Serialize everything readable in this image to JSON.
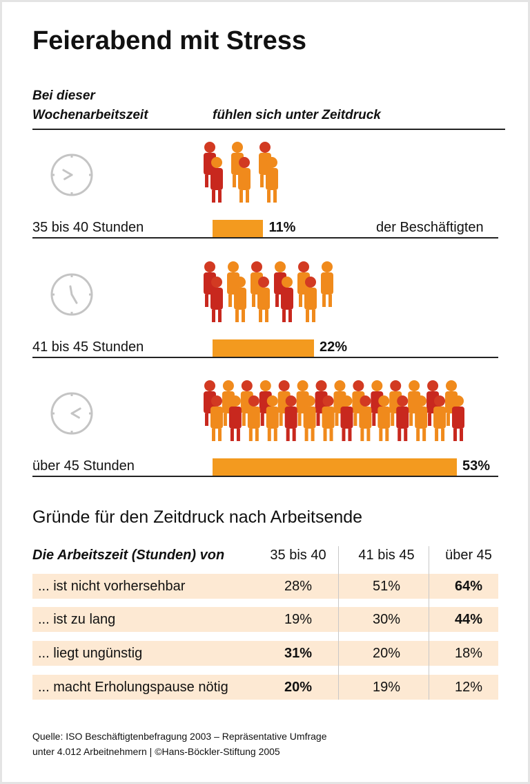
{
  "title": "Feierabend mit Stress",
  "header": {
    "left_line1": "Bei dieser",
    "left_line2": "Wochenarbeitszeit",
    "right": "fühlen sich unter Zeitdruck"
  },
  "chart_data": {
    "type": "bar",
    "categories": [
      "35 bis 40 Stunden",
      "41 bis 45 Stunden",
      "über 45 Stunden"
    ],
    "values": [
      11,
      22,
      53
    ],
    "value_labels": [
      "11%",
      "22%",
      "53%"
    ],
    "unit_note": "der Beschäftigten",
    "bar_color": "#f39a1f",
    "icons": [
      "clock-icon",
      "people-figures-icon"
    ]
  },
  "table": {
    "title": "Gründe für den Zeitdruck nach Arbeitsende",
    "header": [
      "Die Arbeitszeit (Stunden) von",
      "35 bis 40",
      "41 bis 45",
      "über 45"
    ],
    "row_color": "#fde9d3",
    "rows": [
      {
        "label": "... ist nicht vorhersehbar",
        "values": [
          "28%",
          "51%",
          "64%"
        ],
        "bold": [
          false,
          false,
          true
        ]
      },
      {
        "label": "... ist zu lang",
        "values": [
          "19%",
          "30%",
          "44%"
        ],
        "bold": [
          false,
          false,
          true
        ]
      },
      {
        "label": "... liegt ungünstig",
        "values": [
          "31%",
          "20%",
          "18%"
        ],
        "bold": [
          true,
          false,
          false
        ]
      },
      {
        "label": "... macht Erholungspause nötig",
        "values": [
          "20%",
          "19%",
          "12%"
        ],
        "bold": [
          true,
          false,
          false
        ]
      }
    ]
  },
  "footer": {
    "line1": "Quelle: ISO Beschäftigtenbefragung 2003 – Repräsentative Umfrage",
    "line2": "unter 4.012 Arbeitnehmern | ©Hans-Böckler-Stiftung 2005"
  }
}
